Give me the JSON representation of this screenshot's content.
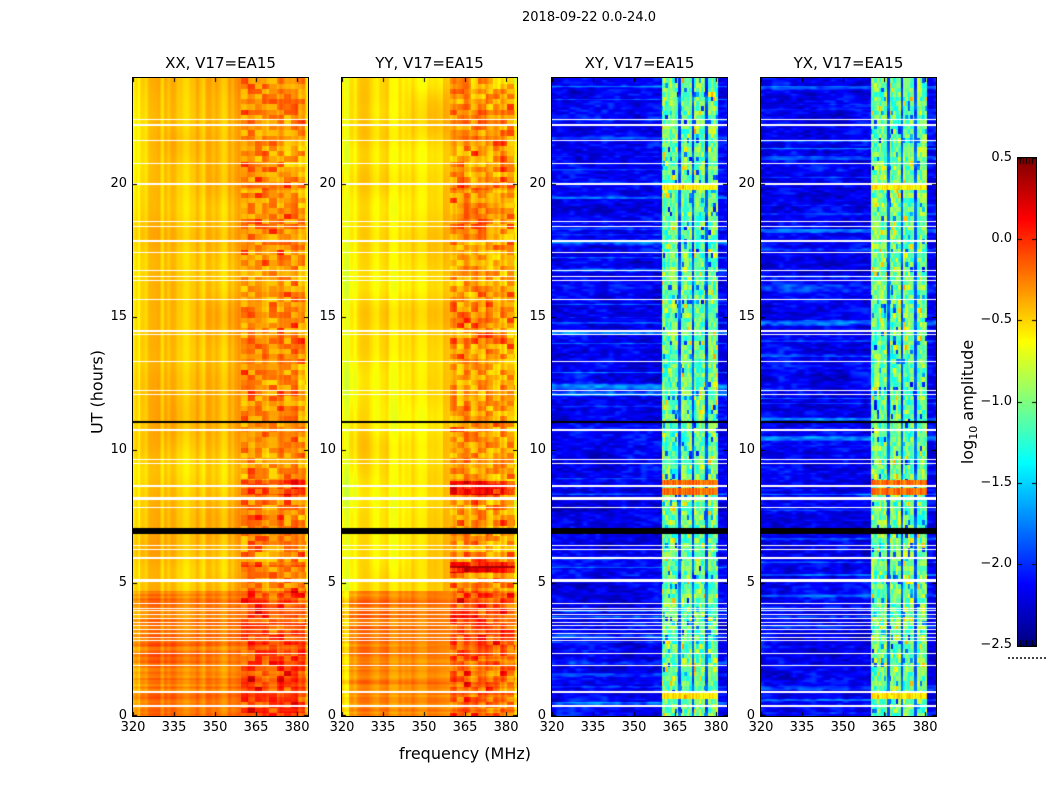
{
  "figure": {
    "title": "2018-09-22 0.0-24.0",
    "xlabel": "frequency (MHz)",
    "ylabel": "UT (hours)"
  },
  "colorbar": {
    "label_prefix": "log",
    "label_sub": "10",
    "label_suffix": " amplitude",
    "tick_labels": [
      "0.5",
      "0.0",
      "−0.5",
      "−1.0",
      "−1.5",
      "−2.0",
      "−2.5"
    ]
  },
  "chart_data": {
    "type": "heatmap",
    "title": "2018-09-22 0.0-24.0",
    "xlabel": "frequency (MHz)",
    "ylabel": "UT (hours)",
    "x_range": [
      320,
      384
    ],
    "x_ticks": [
      320,
      335,
      350,
      365,
      380
    ],
    "y_range": [
      0,
      24
    ],
    "y_ticks": [
      0,
      5,
      10,
      15,
      20
    ],
    "grid": false,
    "colormap": "jet",
    "color_range": [
      -2.5,
      0.5
    ],
    "colorbar_ticks": [
      0.5,
      0.0,
      -0.5,
      -1.0,
      -1.5,
      -2.0,
      -2.5
    ],
    "colorbar_label": "log10 amplitude",
    "panels": [
      {
        "title": "XX, V17=EA15",
        "kind": "auto",
        "seed": 11,
        "base": -0.4,
        "yellow": 0.06,
        "hot_rows": [
          [
            8.45,
            0.1
          ],
          [
            8.75,
            0.1
          ],
          [
            5.55,
            0.05
          ],
          [
            19.9,
            0.05
          ]
        ]
      },
      {
        "title": "YY, V17=EA15",
        "kind": "auto",
        "seed": 47,
        "base": -0.42,
        "yellow": 0.16,
        "hot_rows": [
          [
            8.45,
            0.22
          ],
          [
            8.72,
            0.22
          ],
          [
            5.5,
            0.2
          ],
          [
            5.68,
            0.2
          ],
          [
            19.9,
            0.06
          ]
        ]
      },
      {
        "title": "XY, V17=EA15",
        "kind": "cross",
        "seed": 83,
        "hot_rows": [
          [
            8.45,
            1.0
          ],
          [
            8.75,
            1.0
          ],
          [
            0.75,
            0.4
          ],
          [
            19.9,
            0.35
          ]
        ]
      },
      {
        "title": "YX, V17=EA15",
        "kind": "cross",
        "seed": 131,
        "hot_rows": [
          [
            8.45,
            1.0
          ],
          [
            8.75,
            1.0
          ],
          [
            0.75,
            0.4
          ],
          [
            19.9,
            0.35
          ]
        ]
      }
    ],
    "flagged_rows": [
      [
        22.45,
        1
      ],
      [
        22.25,
        2
      ],
      [
        21.65,
        1
      ],
      [
        20.8,
        1
      ],
      [
        20.0,
        2
      ],
      [
        18.6,
        1
      ],
      [
        18.4,
        1
      ],
      [
        17.85,
        2
      ],
      [
        17.45,
        1
      ],
      [
        16.75,
        1
      ],
      [
        16.55,
        1
      ],
      [
        16.4,
        1
      ],
      [
        15.65,
        1
      ],
      [
        14.5,
        2
      ],
      [
        14.35,
        1
      ],
      [
        13.35,
        1
      ],
      [
        12.25,
        1
      ],
      [
        12.1,
        1
      ],
      [
        10.75,
        2
      ],
      [
        9.65,
        1
      ],
      [
        9.5,
        1
      ],
      [
        8.65,
        2
      ],
      [
        8.2,
        3
      ],
      [
        7.85,
        1
      ],
      [
        6.4,
        1
      ],
      [
        6.25,
        1
      ],
      [
        5.95,
        2
      ],
      [
        5.1,
        3
      ],
      [
        4.25,
        1
      ],
      [
        4.05,
        1
      ],
      [
        3.95,
        1
      ],
      [
        3.8,
        1
      ],
      [
        3.65,
        1
      ],
      [
        3.5,
        1
      ],
      [
        3.4,
        1
      ],
      [
        3.25,
        1
      ],
      [
        3.1,
        1
      ],
      [
        2.95,
        1
      ],
      [
        2.85,
        1
      ],
      [
        2.35,
        1
      ],
      [
        1.9,
        1
      ],
      [
        0.9,
        2
      ],
      [
        0.38,
        2
      ]
    ],
    "black_rows": [
      [
        6.95,
        6
      ],
      [
        11.05,
        2
      ]
    ],
    "rfi_band_cross": {
      "start": 360.3,
      "end": 380.8,
      "splits": [
        366.6,
        371.5,
        376.5
      ],
      "split_halfwidth": 0.42
    },
    "rfi_band_auto": {
      "start": 359.5,
      "end": 383.2
    },
    "warm_bottom_hour": 4.7
  }
}
